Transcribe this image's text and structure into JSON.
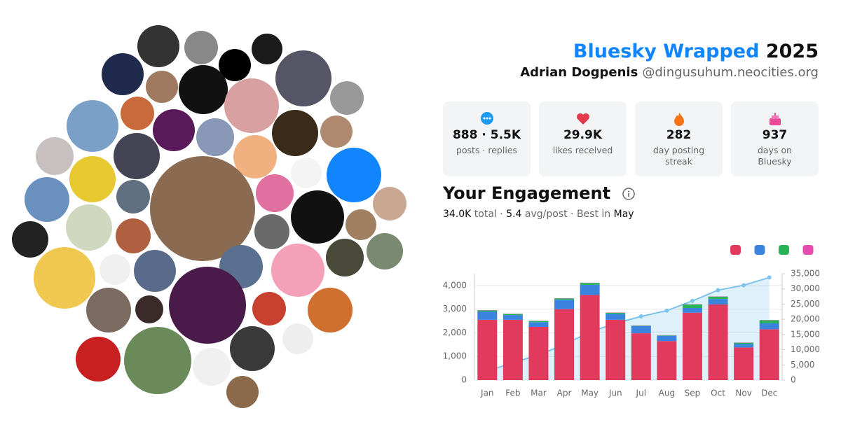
{
  "header": {
    "title": "Bluesky Wrapped",
    "year": "2025",
    "name": "Adrian Dogpenis",
    "handle": "@dingusuhum.neocities.org"
  },
  "stats": [
    {
      "value": "888 · 5.5K",
      "label": "posts · replies"
    },
    {
      "value": "29.9K",
      "label": "likes received"
    },
    {
      "value": "282",
      "label": "day posting streak"
    },
    {
      "value": "937",
      "label": "days on Bluesky"
    }
  ],
  "engagement": {
    "title": "Your Engagement",
    "summary": [
      "34.0K",
      " total · ",
      "5.4",
      " avg/post · Best in ",
      "May"
    ]
  },
  "chart_data": {
    "type": "stacked-bar",
    "categories": [
      "Jan",
      "Feb",
      "Mar",
      "Apr",
      "May",
      "Jun",
      "Jul",
      "Aug",
      "Sep",
      "Oct",
      "Nov",
      "Dec"
    ],
    "series": [
      {
        "color": "#e23a5c",
        "values": [
          2550,
          2550,
          2250,
          3000,
          3600,
          2550,
          1980,
          1650,
          2850,
          3200,
          1380,
          2150
        ]
      },
      {
        "color": "#3a84e0",
        "values": [
          350,
          200,
          200,
          400,
          430,
          250,
          300,
          220,
          200,
          230,
          150,
          250
        ]
      },
      {
        "color": "#27b35a",
        "values": [
          50,
          50,
          50,
          50,
          80,
          50,
          20,
          20,
          150,
          100,
          50,
          130
        ]
      },
      {
        "color": "#e84bb0",
        "values": [
          10,
          10,
          10,
          10,
          10,
          10,
          10,
          10,
          10,
          10,
          10,
          10
        ]
      },
      {
        "color": "#7cc4ec",
        "axis": "y2",
        "type": "line",
        "values": [
          2950,
          5750,
          8250,
          11700,
          15800,
          18650,
          20950,
          22850,
          26050,
          29600,
          31200,
          33750
        ]
      }
    ],
    "ylim": [
      0,
      4500
    ],
    "yticks": [
      0,
      {
        "value": 1000,
        "label": "1,000"
      },
      {
        "value": 2000,
        "label": "2,000"
      },
      {
        "value": 3000,
        "label": "3,000"
      },
      {
        "value": 4000,
        "label": "4,000"
      }
    ],
    "y2lim": [
      0,
      35000
    ],
    "y2ticks": [
      0,
      {
        "value": 5000,
        "label": "5,000"
      },
      {
        "value": 10000,
        "label": "10,000"
      },
      {
        "value": 15000,
        "label": "15,000"
      },
      {
        "value": 20000,
        "label": "20,000"
      },
      {
        "value": 25000,
        "label": "25,000"
      },
      {
        "value": 30000,
        "label": "30,000"
      },
      {
        "value": 35000,
        "label": "35,000"
      }
    ],
    "grid": true
  }
}
